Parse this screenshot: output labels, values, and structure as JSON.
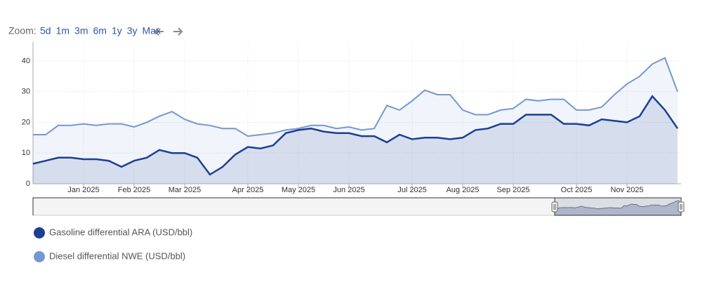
{
  "chart_data": {
    "type": "line",
    "zoom_label": "Zoom:",
    "zoom_options": [
      "5d",
      "1m",
      "3m",
      "6m",
      "1y",
      "3y",
      "Max"
    ],
    "categories": [
      null,
      null,
      null,
      null,
      "Jan 2025",
      null,
      null,
      null,
      "Feb 2025",
      null,
      null,
      null,
      "Mar 2025",
      null,
      null,
      null,
      null,
      "Apr 2025",
      null,
      null,
      null,
      "May 2025",
      null,
      null,
      null,
      "Jun 2025",
      null,
      null,
      null,
      null,
      "Jul 2025",
      null,
      null,
      null,
      "Aug 2025",
      null,
      null,
      null,
      "Sep 2025",
      null,
      null,
      null,
      null,
      "Oct 2025",
      null,
      null,
      null,
      "Nov 2025",
      null,
      null,
      null,
      null
    ],
    "series": [
      {
        "name": "Gasoline differential ARA (USD/bbl)",
        "color": "#1c3f94",
        "values": [
          6.5,
          7.5,
          8.5,
          8.5,
          8,
          8,
          7.5,
          5.5,
          7.5,
          8.5,
          11,
          10,
          10,
          8.5,
          3,
          5.5,
          9.5,
          12,
          11.5,
          12.5,
          16.5,
          17.5,
          18,
          17,
          16.5,
          16.5,
          15.5,
          15.5,
          13.5,
          16,
          14.5,
          15,
          15,
          14.5,
          15,
          17.5,
          18,
          19.5,
          19.5,
          22.5,
          22.5,
          22.5,
          19.5,
          19.5,
          19,
          21,
          20.5,
          20,
          22,
          28.5,
          24,
          18
        ]
      },
      {
        "name": "Diesel differential NWE (USD/bbl)",
        "color": "#7398d2",
        "values": [
          16,
          16,
          19,
          19,
          19.5,
          19,
          19.5,
          19.5,
          18.5,
          20,
          22,
          23.5,
          21,
          19.5,
          19,
          18,
          18,
          15.5,
          16,
          16.5,
          17.5,
          18,
          19,
          19,
          18,
          18.5,
          17.5,
          18,
          25.5,
          24,
          27,
          30.5,
          29,
          29,
          24,
          22.5,
          22.5,
          24,
          24.5,
          27.5,
          27,
          27.5,
          27.5,
          24,
          24,
          25,
          29,
          32.5,
          35,
          39,
          41,
          30
        ]
      }
    ],
    "ylim": [
      0,
      45
    ],
    "yticks": [
      0,
      10,
      20,
      30,
      40
    ],
    "grid": true
  }
}
